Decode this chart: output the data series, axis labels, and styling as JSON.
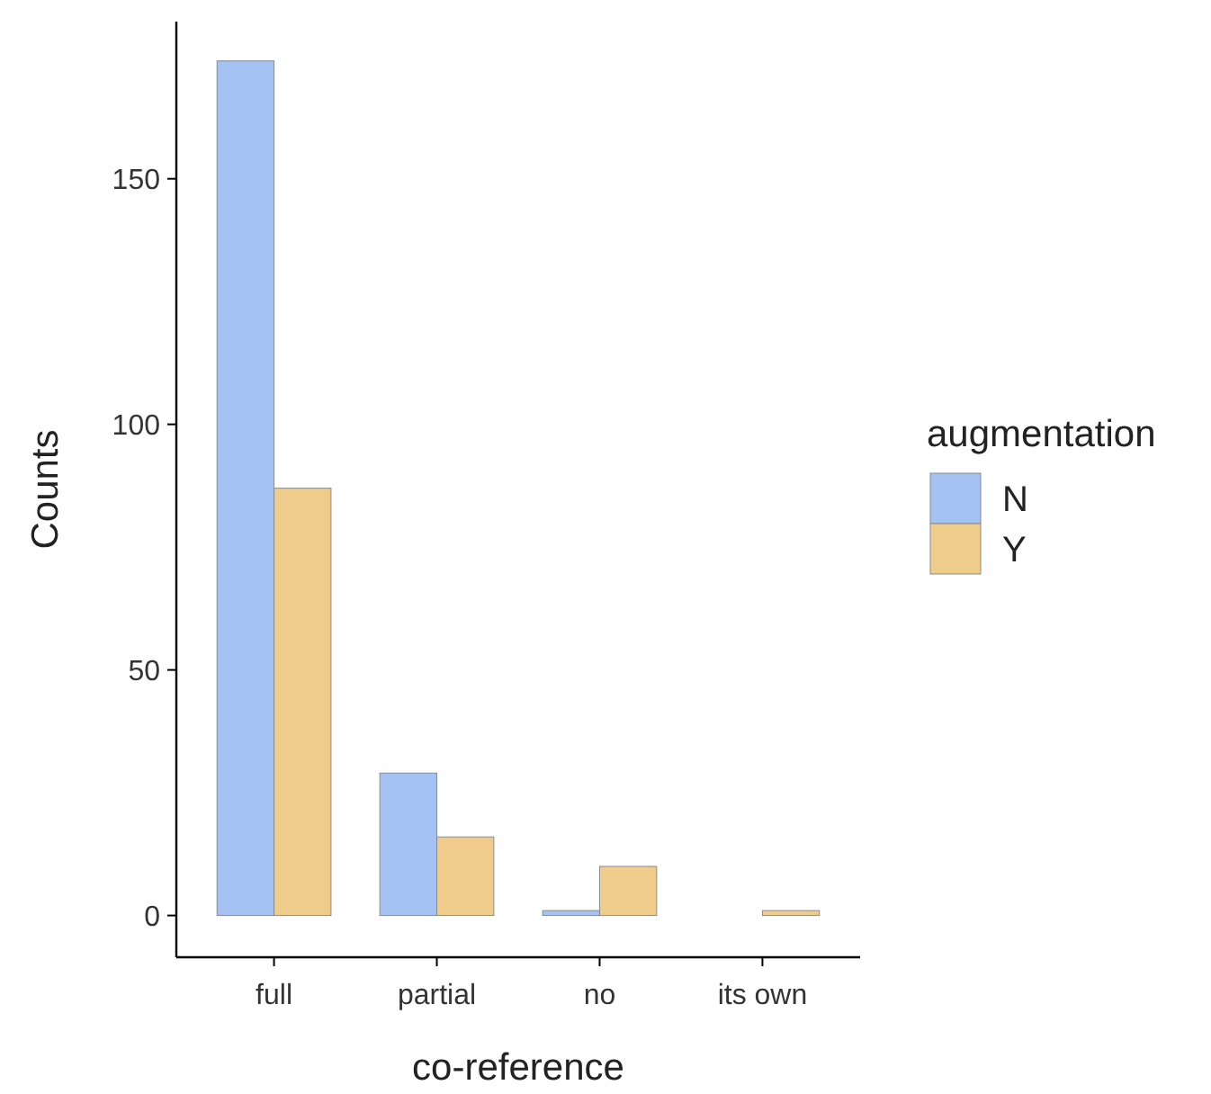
{
  "chart_data": {
    "type": "bar",
    "xlabel": "co-reference",
    "ylabel": "Counts",
    "legend_title": "augmentation",
    "categories": [
      "full",
      "partial",
      "no",
      "its own"
    ],
    "series": [
      {
        "name": "N",
        "color": "#a4c2f4",
        "values": [
          174,
          29,
          1,
          null
        ]
      },
      {
        "name": "Y",
        "color": "#f0cc8c",
        "values": [
          87,
          16,
          10,
          1
        ]
      }
    ],
    "ylim": [
      -8.5,
      182
    ],
    "yticks": [
      0,
      50,
      100,
      150
    ],
    "grid": false,
    "legend": "right"
  }
}
